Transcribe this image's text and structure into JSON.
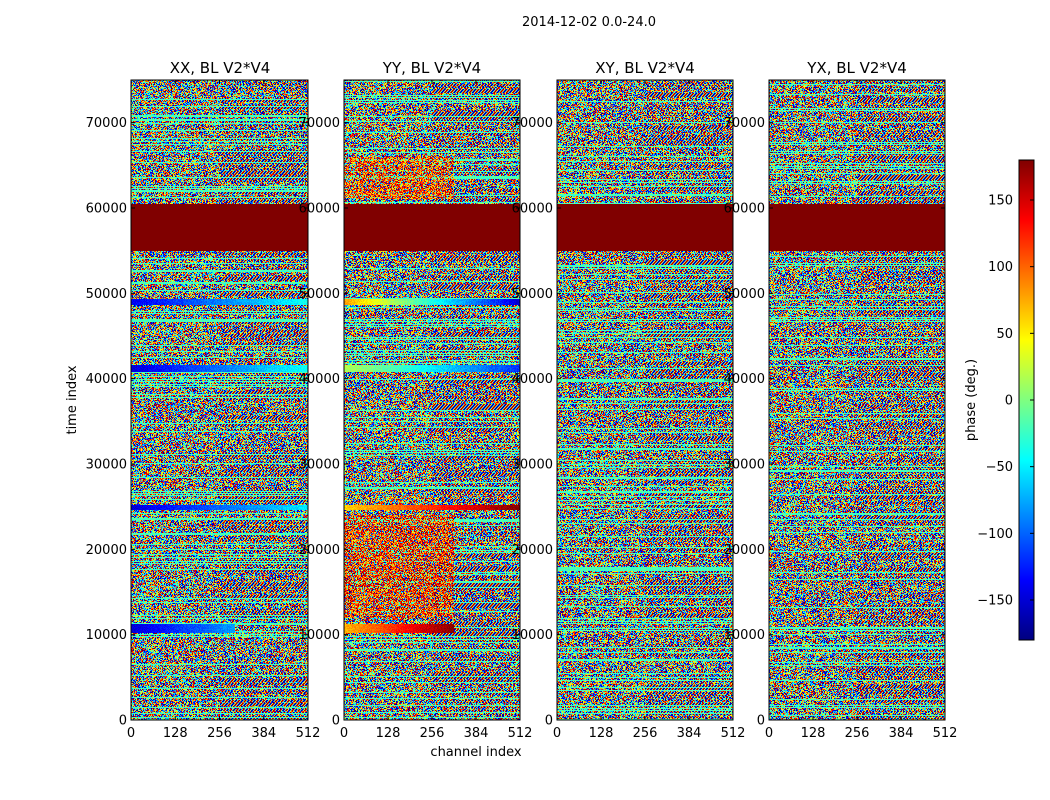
{
  "figure": {
    "suptitle": "2014-12-02 0.0-24.0",
    "colorbar_label": "phase (deg.)",
    "colormap": "jet",
    "colors": {
      "band_dark_red": "#7f0000",
      "background": "#ffffff",
      "axes": "#000000"
    }
  },
  "chart_data": [
    {
      "type": "heatmap",
      "title": "XX, BL V2*V4",
      "xlabel": "",
      "ylabel": "time index",
      "xlim": [
        0,
        512
      ],
      "ylim": [
        0,
        75000
      ],
      "xticks": [
        "0",
        "128",
        "256",
        "384",
        "512"
      ],
      "yticks": [
        "0",
        "10000",
        "20000",
        "30000",
        "40000",
        "50000",
        "60000",
        "70000"
      ],
      "zlim": [
        -180,
        180
      ],
      "features": [
        {
          "kind": "constant_band",
          "y": [
            55000,
            60500
          ],
          "phase": 180
        },
        {
          "kind": "gradient_stripe",
          "y": [
            10200,
            11200
          ],
          "x": [
            0,
            300
          ],
          "phase_from": -150,
          "phase_to": -80
        },
        {
          "kind": "gradient_stripe",
          "y": [
            24600,
            25200
          ],
          "x": [
            0,
            512
          ],
          "phase_from": -150,
          "phase_to": -50
        },
        {
          "kind": "gradient_stripe",
          "y": [
            40800,
            41600
          ],
          "x": [
            0,
            512
          ],
          "phase_from": -150,
          "phase_to": -40
        },
        {
          "kind": "gradient_stripe",
          "y": [
            48600,
            49300
          ],
          "x": [
            0,
            512
          ],
          "phase_from": -140,
          "phase_to": -40
        }
      ]
    },
    {
      "type": "heatmap",
      "title": "YY, BL V2*V4",
      "xlabel": "channel index",
      "ylabel": "",
      "xlim": [
        0,
        512
      ],
      "ylim": [
        0,
        75000
      ],
      "xticks": [
        "0",
        "128",
        "256",
        "384",
        "512"
      ],
      "yticks": [
        "0",
        "10000",
        "20000",
        "30000",
        "40000",
        "50000",
        "60000",
        "70000"
      ],
      "zlim": [
        -180,
        180
      ],
      "features": [
        {
          "kind": "constant_band",
          "y": [
            55000,
            60500
          ],
          "phase": 180
        },
        {
          "kind": "gradient_stripe",
          "y": [
            10200,
            11200
          ],
          "x": [
            0,
            320
          ],
          "phase_from": 70,
          "phase_to": 180
        },
        {
          "kind": "gradient_stripe",
          "y": [
            24600,
            25200
          ],
          "x": [
            0,
            512
          ],
          "phase_from": 60,
          "phase_to": 180
        },
        {
          "kind": "gradient_stripe",
          "y": [
            40800,
            41600
          ],
          "x": [
            0,
            512
          ],
          "phase_from": 20,
          "phase_to": -120
        },
        {
          "kind": "gradient_stripe",
          "y": [
            48600,
            49300
          ],
          "x": [
            0,
            512
          ],
          "phase_from": 80,
          "phase_to": -150
        },
        {
          "kind": "warm_noise_region",
          "y": [
            12000,
            24000
          ],
          "x": [
            0,
            320
          ],
          "phase_center": 120
        },
        {
          "kind": "warm_noise_region",
          "y": [
            61000,
            66000
          ],
          "x": [
            0,
            320
          ],
          "phase_center": 110
        }
      ]
    },
    {
      "type": "heatmap",
      "title": "XY, BL V2*V4",
      "xlabel": "",
      "ylabel": "",
      "xlim": [
        0,
        512
      ],
      "ylim": [
        0,
        75000
      ],
      "xticks": [
        "0",
        "128",
        "256",
        "384",
        "512"
      ],
      "yticks": [
        "0",
        "10000",
        "20000",
        "30000",
        "40000",
        "50000",
        "60000",
        "70000"
      ],
      "zlim": [
        -180,
        180
      ],
      "features": [
        {
          "kind": "constant_band",
          "y": [
            55000,
            60500
          ],
          "phase": 180
        }
      ]
    },
    {
      "type": "heatmap",
      "title": "YX, BL V2*V4",
      "xlabel": "",
      "ylabel": "",
      "xlim": [
        0,
        512
      ],
      "ylim": [
        0,
        75000
      ],
      "xticks": [
        "0",
        "128",
        "256",
        "384",
        "512"
      ],
      "yticks": [
        "0",
        "10000",
        "20000",
        "30000",
        "40000",
        "50000",
        "60000",
        "70000"
      ],
      "zlim": [
        -180,
        180
      ],
      "features": [
        {
          "kind": "constant_band",
          "y": [
            55000,
            60500
          ],
          "phase": 180
        }
      ]
    }
  ],
  "colorbar": {
    "range": [
      -180,
      180
    ],
    "ticks": [
      "150",
      "100",
      "50",
      "0",
      "−50",
      "−100",
      "−150"
    ],
    "tick_values": [
      150,
      100,
      50,
      0,
      -50,
      -100,
      -150
    ]
  }
}
